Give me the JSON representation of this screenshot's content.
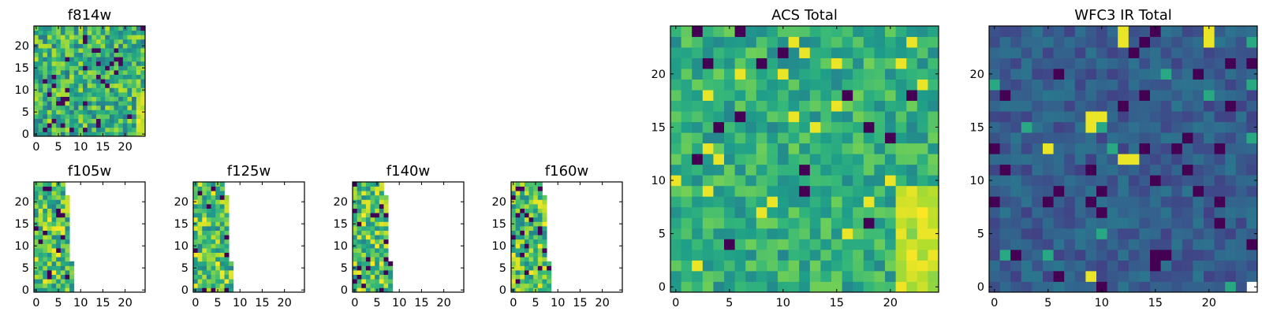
{
  "chart_data": [
    {
      "type": "heatmap",
      "title": "f814w",
      "xticks": [
        0,
        5,
        10,
        15,
        20
      ],
      "yticks": [
        0,
        5,
        10,
        15,
        20
      ],
      "xlim": [
        0,
        25
      ],
      "ylim": [
        0,
        25
      ],
      "colormap": "viridis"
    },
    {
      "type": "heatmap",
      "title": "f105w",
      "xticks": [
        0,
        5,
        10,
        15,
        20
      ],
      "yticks": [
        0,
        5,
        10,
        15,
        20
      ],
      "xlim": [
        0,
        25
      ],
      "ylim": [
        0,
        25
      ],
      "colormap": "viridis"
    },
    {
      "type": "heatmap",
      "title": "f125w",
      "xticks": [
        0,
        5,
        10,
        15,
        20
      ],
      "yticks": [
        0,
        5,
        10,
        15,
        20
      ],
      "xlim": [
        0,
        25
      ],
      "ylim": [
        0,
        25
      ],
      "colormap": "viridis"
    },
    {
      "type": "heatmap",
      "title": "f140w",
      "xticks": [
        0,
        5,
        10,
        15,
        20
      ],
      "yticks": [
        0,
        5,
        10,
        15,
        20
      ],
      "xlim": [
        0,
        25
      ],
      "ylim": [
        0,
        25
      ],
      "colormap": "viridis"
    },
    {
      "type": "heatmap",
      "title": "f160w",
      "xticks": [
        0,
        5,
        10,
        15,
        20
      ],
      "yticks": [
        0,
        5,
        10,
        15,
        20
      ],
      "xlim": [
        0,
        25
      ],
      "ylim": [
        0,
        25
      ],
      "colormap": "viridis"
    },
    {
      "type": "heatmap",
      "title": "ACS Total",
      "xticks": [
        0,
        5,
        10,
        15,
        20
      ],
      "yticks": [
        0,
        5,
        10,
        15,
        20
      ],
      "xlim": [
        0,
        25
      ],
      "ylim": [
        0,
        25
      ],
      "colormap": "viridis"
    },
    {
      "type": "heatmap",
      "title": "WFC3 IR Total",
      "xticks": [
        0,
        5,
        10,
        15,
        20
      ],
      "yticks": [
        0,
        5,
        10,
        15,
        20
      ],
      "xlim": [
        0,
        25
      ],
      "ylim": [
        0,
        25
      ],
      "colormap": "viridis"
    }
  ]
}
